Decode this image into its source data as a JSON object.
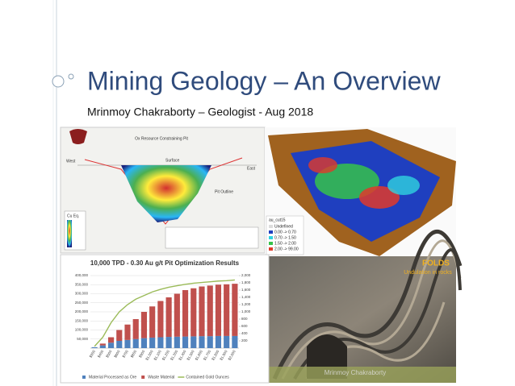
{
  "slide": {
    "title": "Mining Geology – An Overview",
    "subtitle": "Mrinmoy Chakraborty – Geologist - Aug 2018",
    "footer": "Mrinmoy Chakraborty"
  },
  "cross_section": {
    "title": "Ox Resource Constraining Pit",
    "labels": [
      "West",
      "Surface",
      "East",
      "Pit Outline"
    ],
    "legend_title": "Cu Eq."
  },
  "block_model": {
    "legend_title": "au_cut15",
    "legend": [
      "Undefined",
      "0.00 -> 0.70",
      "0.70 -> 1.50",
      "1.50 -> 2.00",
      "2.00 -> 99.00"
    ]
  },
  "photo": {
    "title": "FOLDS",
    "caption": "Undulation in rocks"
  },
  "chart_data": {
    "type": "bar",
    "title": "10,000 TPD - 0.30 Au g/t Pit Optimization Results",
    "categories": [
      "$300",
      "$400",
      "$500",
      "$600",
      "$700",
      "$800",
      "$900",
      "$1,000",
      "$1,100",
      "$1,200",
      "$1,300",
      "$1,400",
      "$1,500",
      "$1,600",
      "$1,700",
      "$1,800",
      "$1,900",
      "$2,000"
    ],
    "series": [
      {
        "name": "Material Processed as Ore",
        "color": "#4f81bd",
        "values": [
          5000,
          15000,
          30000,
          40000,
          45000,
          50000,
          55000,
          58000,
          60000,
          62000,
          63000,
          64000,
          65000,
          66000,
          66000,
          67000,
          67000,
          67000
        ]
      },
      {
        "name": "Waste Material",
        "color": "#c0504d",
        "values": [
          0,
          10000,
          30000,
          60000,
          85000,
          110000,
          145000,
          172000,
          200000,
          218000,
          237000,
          256000,
          265000,
          274000,
          279000,
          283000,
          285000,
          288000
        ]
      },
      {
        "name": "Contained Gold Ounces",
        "color": "#9bbb59",
        "axis": "y2",
        "values": [
          50,
          300,
          700,
          1000,
          1200,
          1350,
          1450,
          1550,
          1620,
          1680,
          1720,
          1760,
          1790,
          1810,
          1830,
          1850,
          1860,
          1880
        ]
      }
    ],
    "ylim": [
      0,
      400000
    ],
    "yticks": [
      {
        "value": 50000,
        "label": "50,000"
      },
      {
        "value": 100000,
        "label": "100,000"
      },
      {
        "value": 150000,
        "label": "150,000"
      },
      {
        "value": 200000,
        "label": "200,000"
      },
      {
        "value": 250000,
        "label": "250,000"
      },
      {
        "value": 300000,
        "label": "300,000"
      },
      {
        "value": 350000,
        "label": "350,000"
      },
      {
        "value": 400000,
        "label": "400,000"
      }
    ],
    "y2lim": [
      0,
      2000
    ],
    "y2ticks": [
      200,
      400,
      600,
      800,
      {
        "value": 1000,
        "label": "1,000"
      },
      {
        "value": 1200,
        "label": "1,200"
      },
      {
        "value": 1400,
        "label": "1,400"
      },
      {
        "value": 1600,
        "label": "1,600"
      },
      {
        "value": 1800,
        "label": "1,800"
      },
      {
        "value": 2000,
        "label": "2,000"
      }
    ],
    "grid": true
  }
}
